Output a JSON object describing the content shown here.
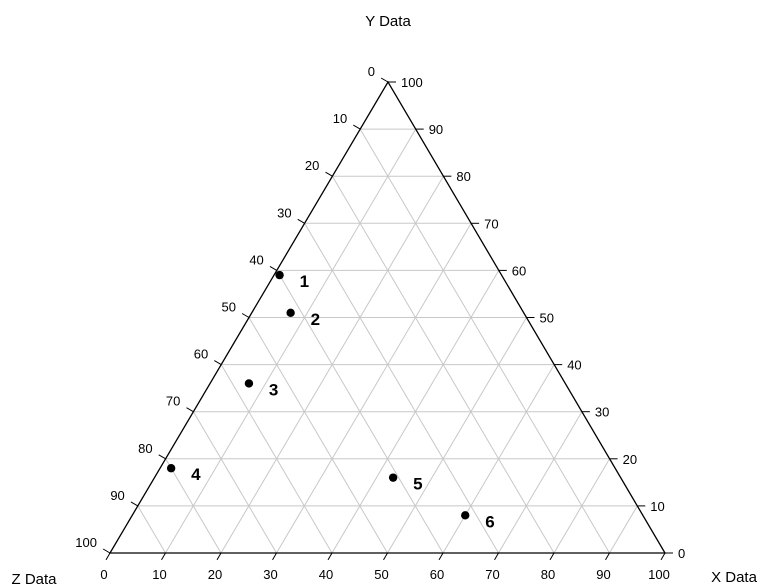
{
  "chart_data": {
    "type": "ternary",
    "axes": {
      "x": {
        "label": "X Data",
        "range": [
          0,
          100
        ],
        "ticks": [
          0,
          10,
          20,
          30,
          40,
          50,
          60,
          70,
          80,
          90,
          100
        ]
      },
      "y": {
        "label": "Y Data",
        "range": [
          0,
          100
        ],
        "ticks": [
          0,
          10,
          20,
          30,
          40,
          50,
          60,
          70,
          80,
          90,
          100
        ]
      },
      "z": {
        "label": "Z Data",
        "range": [
          0,
          100
        ],
        "ticks": [
          0,
          10,
          20,
          30,
          40,
          50,
          60,
          70,
          80,
          90,
          100
        ]
      }
    },
    "grid": true,
    "grid_step": 10,
    "points": [
      {
        "label": "1",
        "x": 1,
        "y": 59,
        "z": 40
      },
      {
        "label": "2",
        "x": 7,
        "y": 51,
        "z": 42
      },
      {
        "label": "3",
        "x": 7,
        "y": 36,
        "z": 57
      },
      {
        "label": "4",
        "x": 2,
        "y": 18,
        "z": 80
      },
      {
        "label": "5",
        "x": 43,
        "y": 16,
        "z": 41
      },
      {
        "label": "6",
        "x": 60,
        "y": 8,
        "z": 32
      }
    ]
  }
}
